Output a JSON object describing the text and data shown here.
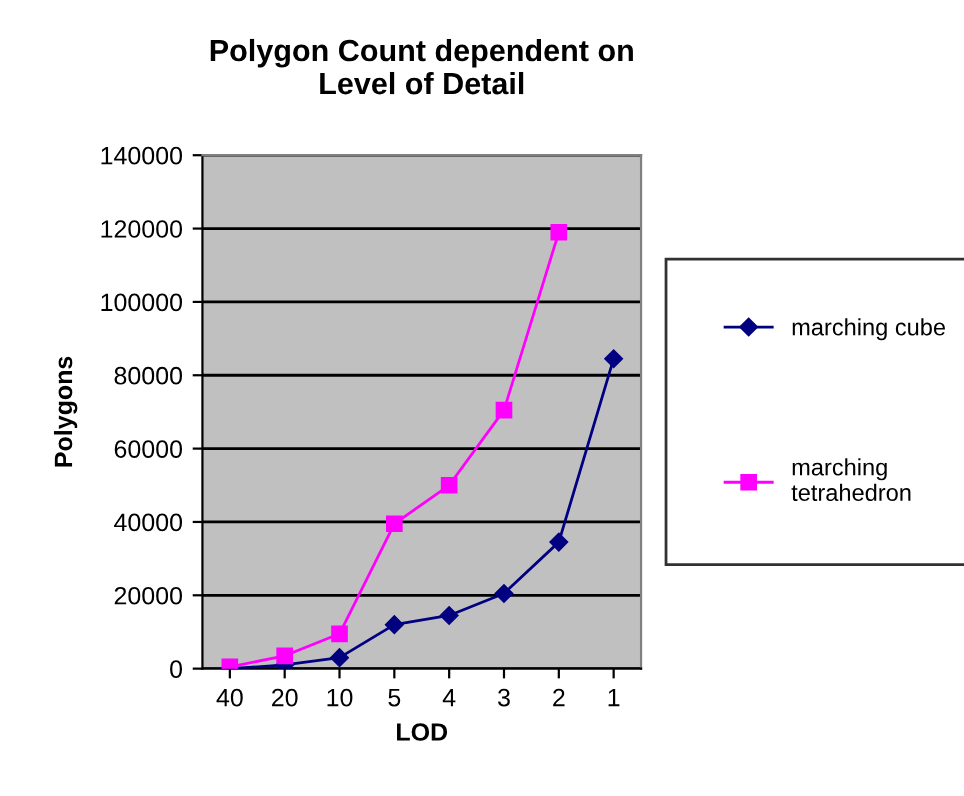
{
  "chart_data": {
    "type": "line",
    "title": "Polygon Count dependent on\nLevel of Detail",
    "xlabel": "LOD",
    "ylabel": "Polygons",
    "categories": [
      "40",
      "20",
      "10",
      "5",
      "4",
      "3",
      "2",
      "1"
    ],
    "series": [
      {
        "name": "marching cube",
        "color": "#000080",
        "marker": "diamond",
        "values": [
          0,
          1000,
          3000,
          12000,
          14500,
          20500,
          34500,
          84500
        ]
      },
      {
        "name": "marching tetrahedron",
        "color": "#ff00ff",
        "marker": "square",
        "values": [
          500,
          3500,
          9500,
          39500,
          50000,
          70500,
          119000,
          null
        ]
      }
    ],
    "ylim": [
      0,
      140000
    ],
    "yticks": [
      0,
      20000,
      40000,
      60000,
      80000,
      100000,
      120000,
      140000
    ],
    "grid": "y",
    "legend": "right",
    "line_style": "solid"
  }
}
